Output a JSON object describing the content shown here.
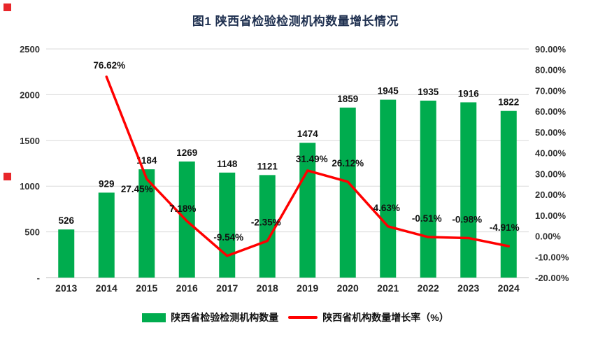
{
  "chart_data": {
    "type": "bar",
    "title": "图1 陕西省检验检测机构数量增长情况",
    "categories": [
      "2013",
      "2014",
      "2015",
      "2016",
      "2017",
      "2018",
      "2019",
      "2020",
      "2021",
      "2022",
      "2023",
      "2024"
    ],
    "series": [
      {
        "name": "陕西省检验检测机构数量",
        "type": "bar",
        "axis": "left",
        "color": "#00AC4E",
        "values": [
          526,
          929,
          1184,
          1269,
          1148,
          1121,
          1474,
          1859,
          1945,
          1935,
          1916,
          1822
        ],
        "labels": [
          "526",
          "929",
          "1184",
          "1269",
          "1148",
          "1121",
          "1474",
          "1859",
          "1945",
          "1935",
          "1916",
          "1822"
        ]
      },
      {
        "name": "陕西省机构数量增长率（%）",
        "type": "line",
        "axis": "right",
        "color": "#FF0000",
        "values": [
          null,
          76.62,
          27.45,
          7.18,
          -9.54,
          -2.35,
          31.49,
          26.12,
          4.63,
          -0.51,
          -0.98,
          -4.91
        ],
        "labels": [
          "",
          "76.62%",
          "27.45%",
          "7.18%",
          "-9.54%",
          "-2.35%",
          "31.49%",
          "26.12%",
          "4.63%",
          "-0.51%",
          "-0.98%",
          "-4.91%"
        ]
      }
    ],
    "left_axis": {
      "min": 0,
      "max": 2500,
      "tick_labels": [
        "2500",
        "2000",
        "1500",
        "1000",
        "500",
        "-"
      ]
    },
    "right_axis": {
      "min": -20,
      "max": 90,
      "tick_labels": [
        "90.00%",
        "80.00%",
        "70.00%",
        "60.00%",
        "50.00%",
        "40.00%",
        "30.00%",
        "20.00%",
        "10.00%",
        "0.00%",
        "-10.00%",
        "-20.00%"
      ]
    },
    "grid": true,
    "legend_position": "bottom"
  },
  "colors": {
    "bar": "#00AC4E",
    "line": "#FF0000",
    "grid": "#D9D9D9",
    "axis": "#BFBFBF",
    "marker": "#E8262A",
    "title": "#1F3050"
  }
}
